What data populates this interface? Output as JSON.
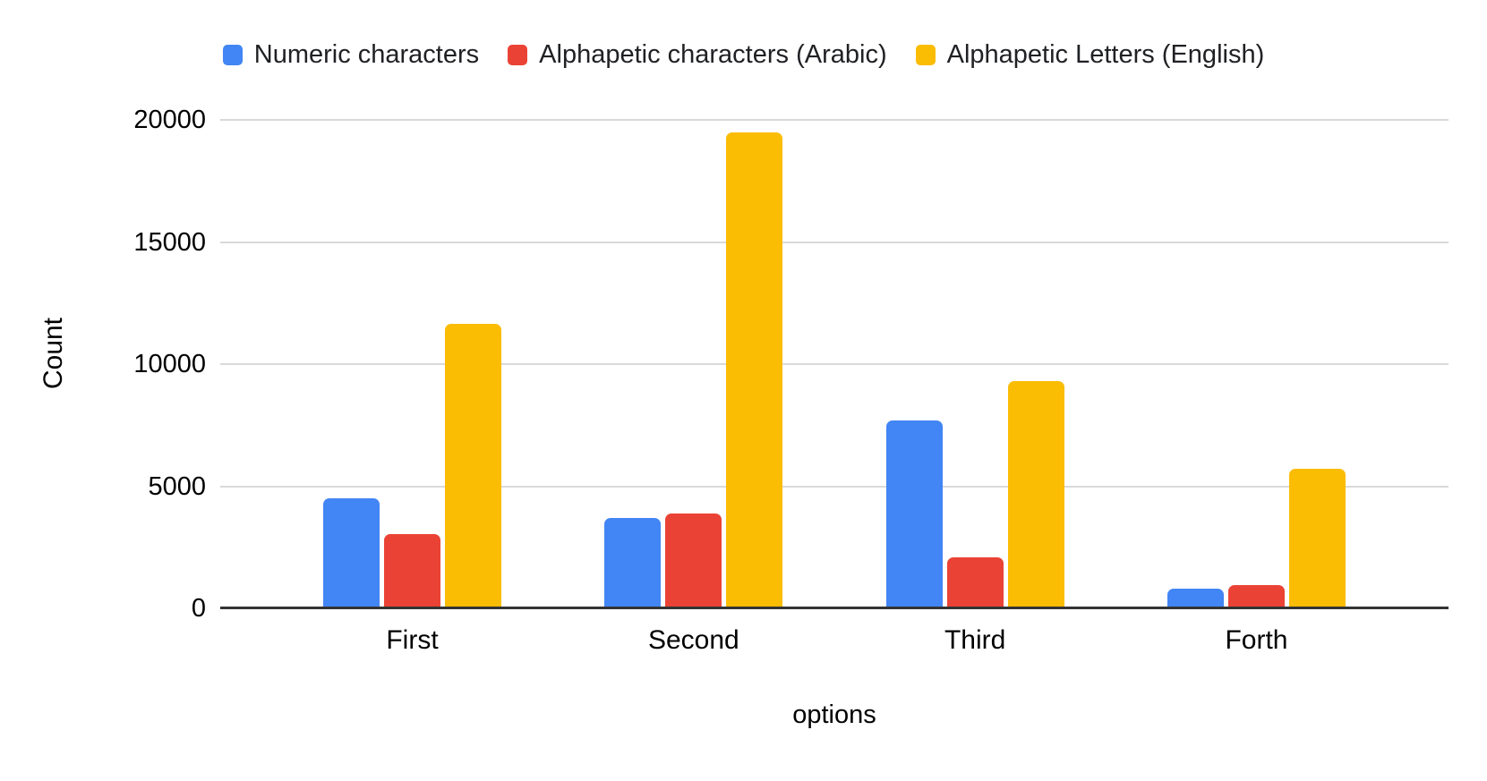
{
  "legend": {
    "items": [
      {
        "label": "Numeric characters",
        "color": "#4285F4"
      },
      {
        "label": "Alphapetic characters (Arabic)",
        "color": "#EA4335"
      },
      {
        "label": "Alphapetic Letters (English)",
        "color": "#FBBC04"
      }
    ]
  },
  "y_axis": {
    "title": "Count",
    "tick_labels": [
      "0",
      "5000",
      "10000",
      "15000",
      "20000"
    ]
  },
  "x_axis": {
    "title": "options",
    "categories": [
      "First",
      "Second",
      "Third",
      "Forth"
    ]
  },
  "chart_data": {
    "type": "bar",
    "categories": [
      "First",
      "Second",
      "Third",
      "Forth"
    ],
    "series": [
      {
        "name": "Numeric characters",
        "color": "#4285F4",
        "values": [
          4500,
          3700,
          7700,
          800
        ]
      },
      {
        "name": "Alphapetic characters (Arabic)",
        "color": "#EA4335",
        "values": [
          3050,
          3900,
          2100,
          950
        ]
      },
      {
        "name": "Alphapetic Letters (English)",
        "color": "#FBBC04",
        "values": [
          11650,
          19500,
          9300,
          5700
        ]
      }
    ],
    "title": "",
    "xlabel": "options",
    "ylabel": "Count",
    "ylim": [
      0,
      20000
    ],
    "yticks": [
      0,
      5000,
      10000,
      15000,
      20000
    ],
    "grid": true,
    "legend_position": "top"
  },
  "colors": {
    "background": "#ffffff",
    "gridline": "#d9d9d9",
    "axis_line": "#333333",
    "legend_text": "#202124",
    "axis_text": "#000000"
  }
}
